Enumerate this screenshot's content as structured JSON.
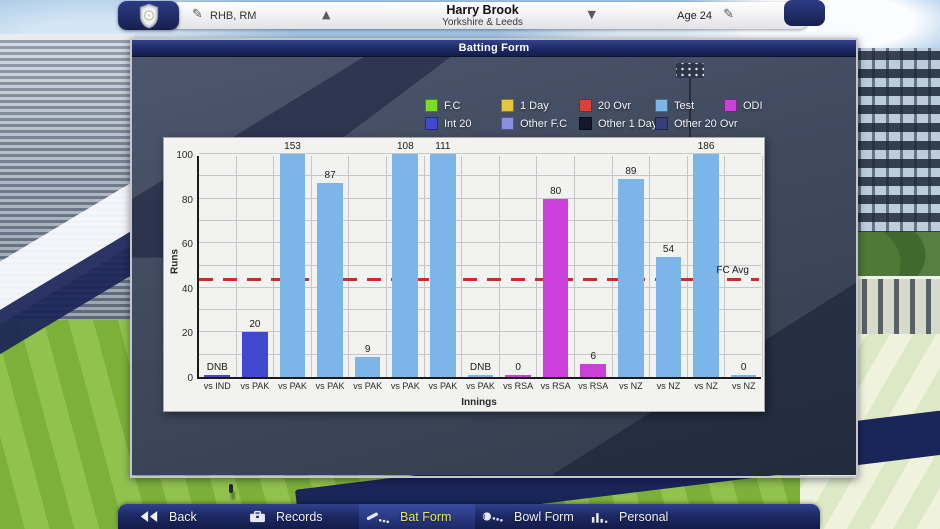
{
  "header": {
    "role": "RHB, RM",
    "player_name": "Harry Brook",
    "team": "Yorkshire & Leeds",
    "age": "Age 24",
    "prev_arrow": "▲",
    "next_arrow": "▼",
    "edit_icon_glyph": "✎"
  },
  "panel": {
    "title": "Batting Form"
  },
  "chart_data": {
    "type": "bar",
    "title": "Batting Form",
    "xlabel": "Innings",
    "ylabel": "Runs",
    "ylim": [
      0,
      100
    ],
    "yticks": [
      0,
      20,
      40,
      60,
      80,
      100
    ],
    "minor_grid_step": 10,
    "grid": true,
    "bars_capped_at": 100,
    "categories": [
      "vs IND",
      "vs PAK",
      "vs PAK",
      "vs PAK",
      "vs PAK",
      "vs PAK",
      "vs PAK",
      "vs PAK",
      "vs RSA",
      "vs RSA",
      "vs RSA",
      "vs NZ",
      "vs NZ",
      "vs NZ",
      "vs NZ"
    ],
    "values": [
      "DNB",
      20,
      153,
      87,
      9,
      108,
      111,
      "DNB",
      0,
      80,
      6,
      89,
      54,
      186,
      0
    ],
    "bar_match_types": [
      "int20",
      "int20",
      "test",
      "test",
      "test",
      "test",
      "test",
      "test",
      "odi",
      "odi",
      "odi",
      "test",
      "test",
      "test",
      "test"
    ],
    "type_colors": {
      "test": "#7cb6e8",
      "odi": "#cb40d8",
      "int20": "#4149cf"
    },
    "reference_line": {
      "label": "FC Avg",
      "value": 43,
      "color": "#cf2b2b",
      "style": "dashed"
    },
    "legend_position": "top",
    "legend": [
      {
        "label": "F.C",
        "color": "#7cdb26"
      },
      {
        "label": "1 Day",
        "color": "#e6c63c"
      },
      {
        "label": "20 Ovr",
        "color": "#d9403a"
      },
      {
        "label": "Test",
        "color": "#7cb6e8"
      },
      {
        "label": "ODI",
        "color": "#cb40d8"
      },
      {
        "label": "Int 20",
        "color": "#4149cf"
      },
      {
        "label": "Other F.C",
        "color": "#8a8fe0"
      },
      {
        "label": "Other 1 Day",
        "color": "#15182e"
      },
      {
        "label": "Other 20 Ovr",
        "color": "#363f78"
      }
    ]
  },
  "nav": {
    "items": [
      {
        "label": "Back",
        "icon": "back-icon",
        "selected": false
      },
      {
        "label": "Records",
        "icon": "records-icon",
        "selected": false
      },
      {
        "label": "Bat Form",
        "icon": "bat-icon",
        "selected": true
      },
      {
        "label": "Bowl Form",
        "icon": "ball-icon",
        "selected": false
      },
      {
        "label": "Personal",
        "icon": "personal-icon",
        "selected": false
      }
    ]
  },
  "colors": {
    "accent_navy": "#1d2a66",
    "selected_tab_text": "#e8e45a"
  }
}
